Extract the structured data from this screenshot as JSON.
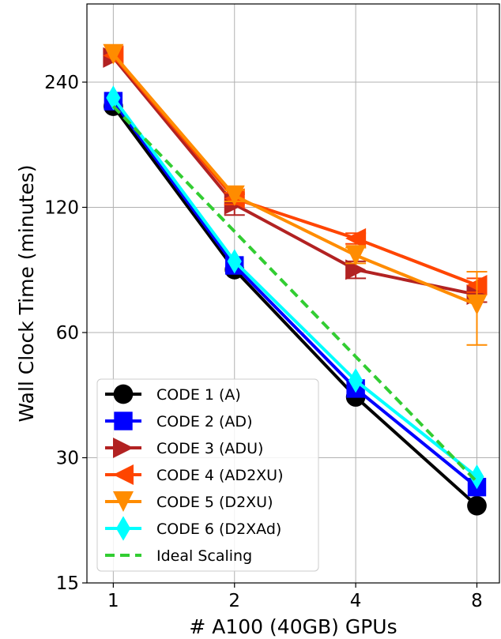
{
  "chart_data": {
    "type": "line",
    "title": "",
    "xlabel": "# A100 (40GB) GPUs",
    "ylabel": "Wall Clock Time (minutes)",
    "x_scale": "log2",
    "y_scale": "log",
    "x": [
      1,
      2,
      4,
      8
    ],
    "x_tick_labels": [
      "1",
      "2",
      "4",
      "8"
    ],
    "y_ticks": [
      15,
      30,
      60,
      120,
      240
    ],
    "y_tick_labels": [
      "15",
      "30",
      "60",
      "120",
      "240"
    ],
    "xlim": [
      0.86,
      9.1
    ],
    "ylim": [
      15,
      370
    ],
    "grid": true,
    "legend_position": "lower-left",
    "series": [
      {
        "name": "CODE 1 (A)",
        "marker": "circle",
        "color": "#000000",
        "line": "solid",
        "values": [
          210,
          85,
          42,
          23
        ]
      },
      {
        "name": "CODE 2 (AD)",
        "marker": "square",
        "color": "#0000ff",
        "line": "solid",
        "values": [
          216,
          87,
          44,
          25.5
        ]
      },
      {
        "name": "CODE 3 (ADU)",
        "marker": "triangle-right",
        "color": "#b22222",
        "line": "solid",
        "values": [
          275,
          122,
          85,
          74
        ],
        "errors": [
          0,
          7,
          4,
          3
        ]
      },
      {
        "name": "CODE 4 (AD2XU)",
        "marker": "triangle-left",
        "color": "#ff4500",
        "line": "solid",
        "values": [
          278,
          126,
          101,
          78
        ],
        "errors": [
          0,
          4,
          3,
          3
        ]
      },
      {
        "name": "CODE 5 (D2XU)",
        "marker": "triangle-down",
        "color": "#ff8c00",
        "line": "solid",
        "values": [
          280,
          128,
          92,
          70
        ],
        "errors": [
          0,
          4,
          4,
          14
        ]
      },
      {
        "name": "CODE 6 (D2XAd)",
        "marker": "diamond",
        "color": "#00ffff",
        "line": "solid",
        "values": [
          220,
          89,
          46,
          27
        ]
      },
      {
        "name": "Ideal Scaling",
        "marker": "none",
        "color": "#32cd32",
        "line": "dashed",
        "values": [
          210,
          105,
          52.5,
          26.25
        ]
      }
    ]
  }
}
